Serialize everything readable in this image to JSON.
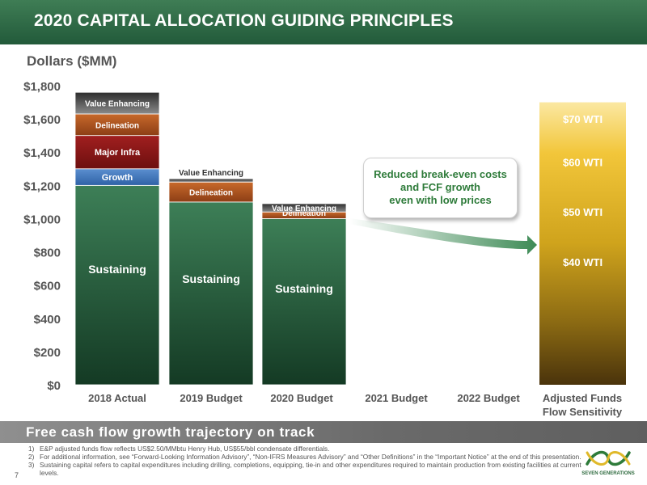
{
  "header": {
    "title": "2020 CAPITAL ALLOCATION GUIDING PRINCIPLES"
  },
  "units_label": "Dollars ($MM)",
  "callout": {
    "lines": [
      "Reduced break-even costs",
      "and FCF growth",
      "even with low prices"
    ]
  },
  "banner": {
    "text": "Free cash flow growth trajectory on track"
  },
  "footnotes": [
    {
      "num": "1)",
      "text": "E&P adjusted funds flow reflects US$2.50/MMbtu Henry Hub, US$55/bbl condensate differentials."
    },
    {
      "num": "2)",
      "text": "For additional information, see “Forward-Looking Information Advisory”, “Non-IFRS Measures Advisory” and “Other Definitions” in the “Important Notice” at the end of this presentation."
    },
    {
      "num": "3)",
      "text": "Sustaining capital refers to capital expenditures including drilling, completions, equipping, tie-in and other expenditures required to maintain production from existing facilities at current levels."
    }
  ],
  "page_number": "7",
  "logo": {
    "text": "SEVEN GENERATIONS"
  },
  "colors": {
    "header": "#2f6b45",
    "sustaining": "#2a6a45",
    "growth": "#3a73b8",
    "major_infra": "#8a1616",
    "delineation": "#b35a22",
    "value_enhancing": "#5a5a5a",
    "callout_text": "#2e7b3a"
  },
  "chart_data": {
    "type": "bar",
    "stacked": true,
    "ylim": [
      0,
      1800
    ],
    "yticks": [
      "$0",
      "$200",
      "$400",
      "$600",
      "$800",
      "$1,000",
      "$1,200",
      "$1,400",
      "$1,600",
      "$1,800"
    ],
    "categories": [
      "2018 Actual",
      "2019 Budget",
      "2020 Budget",
      "2021 Budget",
      "2022 Budget",
      "Adjusted Funds Flow Sensitivity"
    ],
    "series": [
      {
        "name": "Sustaining",
        "values": [
          1200,
          1100,
          1000,
          null,
          null,
          null
        ]
      },
      {
        "name": "Growth",
        "values": [
          100,
          null,
          null,
          null,
          null,
          null
        ]
      },
      {
        "name": "Major Infra",
        "values": [
          200,
          null,
          null,
          null,
          null,
          null
        ]
      },
      {
        "name": "Delineation",
        "values": [
          130,
          120,
          40,
          null,
          null,
          null
        ]
      },
      {
        "name": "Value Enhancing",
        "values": [
          130,
          20,
          50,
          null,
          null,
          null
        ]
      }
    ],
    "sensitivity": {
      "range": [
        0,
        1700
      ],
      "labels": [
        {
          "text": "$70 WTI",
          "value": 1600
        },
        {
          "text": "$60 WTI",
          "value": 1340
        },
        {
          "text": "$50 WTI",
          "value": 1040
        },
        {
          "text": "$40 WTI",
          "value": 740
        }
      ]
    }
  }
}
